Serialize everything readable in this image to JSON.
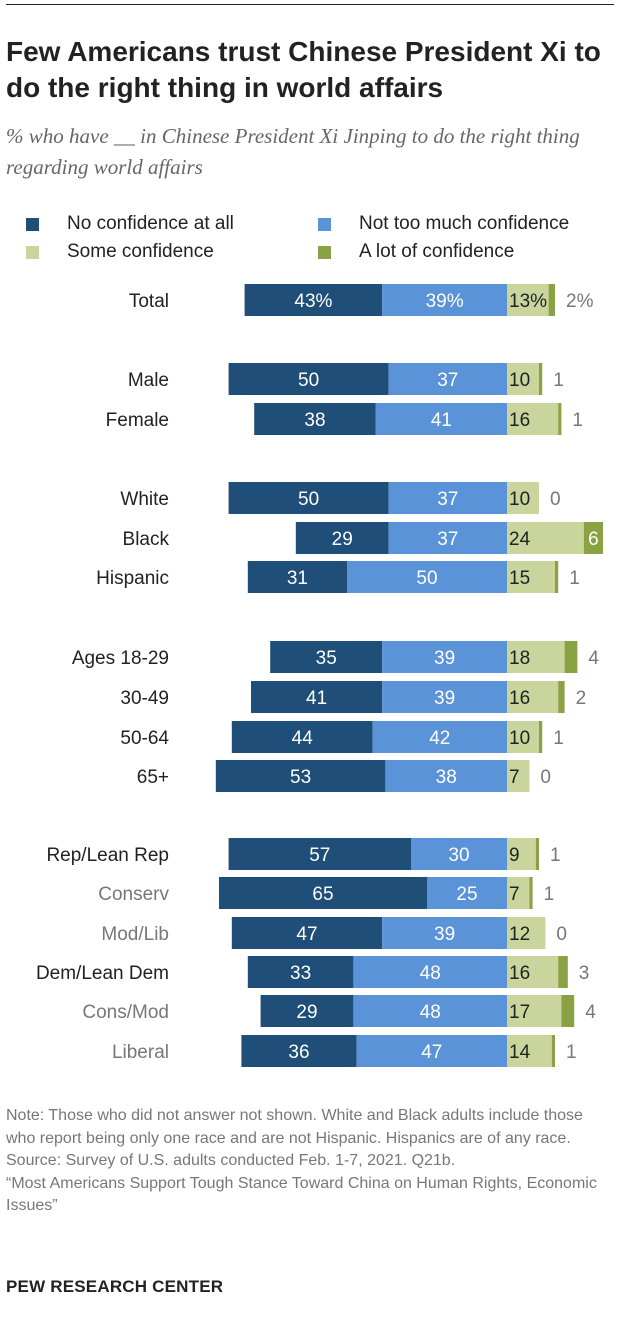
{
  "title": "Few Americans trust Chinese President Xi to do the right thing in world affairs",
  "subtitle": "% who have __ in Chinese President Xi Jinping to do the right thing regarding world affairs",
  "legend": [
    {
      "label": "No confidence at all",
      "color": "#1f4e79"
    },
    {
      "label": "Not too much confidence",
      "color": "#5b93d8"
    },
    {
      "label": "Some confidence",
      "color": "#c9d59c"
    },
    {
      "label": "A lot of confidence",
      "color": "#8aa243"
    }
  ],
  "chart_data": {
    "type": "bar",
    "orientation": "horizontal-diverging-stacked",
    "categories": [
      "Total",
      "Male",
      "Female",
      "White",
      "Black",
      "Hispanic",
      "Ages 18-29",
      "30-49",
      "50-64",
      "65+",
      "Rep/Lean Rep",
      "Conserv",
      "Mod/Lib",
      "Dem/Lean Dem",
      "Cons/Mod",
      "Liberal"
    ],
    "subgroup_categories": [
      "Conserv",
      "Mod/Lib",
      "Cons/Mod",
      "Liberal"
    ],
    "series": [
      {
        "name": "No confidence at all",
        "values": [
          43,
          50,
          38,
          50,
          29,
          31,
          35,
          41,
          44,
          53,
          57,
          65,
          47,
          33,
          29,
          36
        ]
      },
      {
        "name": "Not too much confidence",
        "values": [
          39,
          37,
          41,
          37,
          37,
          50,
          39,
          39,
          42,
          38,
          30,
          25,
          39,
          48,
          48,
          47
        ]
      },
      {
        "name": "Some confidence",
        "values": [
          13,
          10,
          16,
          10,
          24,
          15,
          18,
          16,
          10,
          7,
          9,
          7,
          12,
          16,
          17,
          14
        ]
      },
      {
        "name": "A lot of confidence",
        "values": [
          2,
          1,
          1,
          0,
          6,
          1,
          4,
          2,
          1,
          0,
          1,
          1,
          0,
          3,
          4,
          1
        ]
      }
    ],
    "labels": {
      "s1": [
        "43%",
        "50",
        "38",
        "50",
        "29",
        "31",
        "35",
        "41",
        "44",
        "53",
        "57",
        "65",
        "47",
        "33",
        "29",
        "36"
      ],
      "s2": [
        "39%",
        "37",
        "41",
        "37",
        "37",
        "50",
        "39",
        "39",
        "42",
        "38",
        "30",
        "25",
        "39",
        "48",
        "48",
        "47"
      ],
      "s3": [
        "13%",
        "10",
        "16",
        "10",
        "24",
        "15",
        "18",
        "16",
        "10",
        "7",
        "9",
        "7",
        "12",
        "16",
        "17",
        "14"
      ],
      "s4": [
        "2%",
        "1",
        "1",
        "0",
        "6",
        "1",
        "4",
        "2",
        "1",
        "0",
        "1",
        "1",
        "0",
        "3",
        "4",
        "1"
      ]
    },
    "colors": {
      "s1": "#1f4e79",
      "s2": "#5b93d8",
      "s3": "#c9d59c",
      "s4": "#8aa243",
      "label_dark": "#ffffff",
      "label_light": "#222222",
      "label_outside": "#777777",
      "subgroup_label": "#777777"
    },
    "axis_label": "",
    "xlim": [
      0,
      100
    ]
  },
  "note_lines": [
    "Note: Those who did not answer not shown. White and Black adults include those who report being only one race and are not Hispanic. Hispanics are of any race.",
    "Source: Survey of U.S. adults conducted Feb. 1-7, 2021. Q21b.",
    "“Most Americans Support Tough Stance Toward China on Human Rights, Economic Issues”"
  ],
  "brand": "PEW RESEARCH CENTER"
}
